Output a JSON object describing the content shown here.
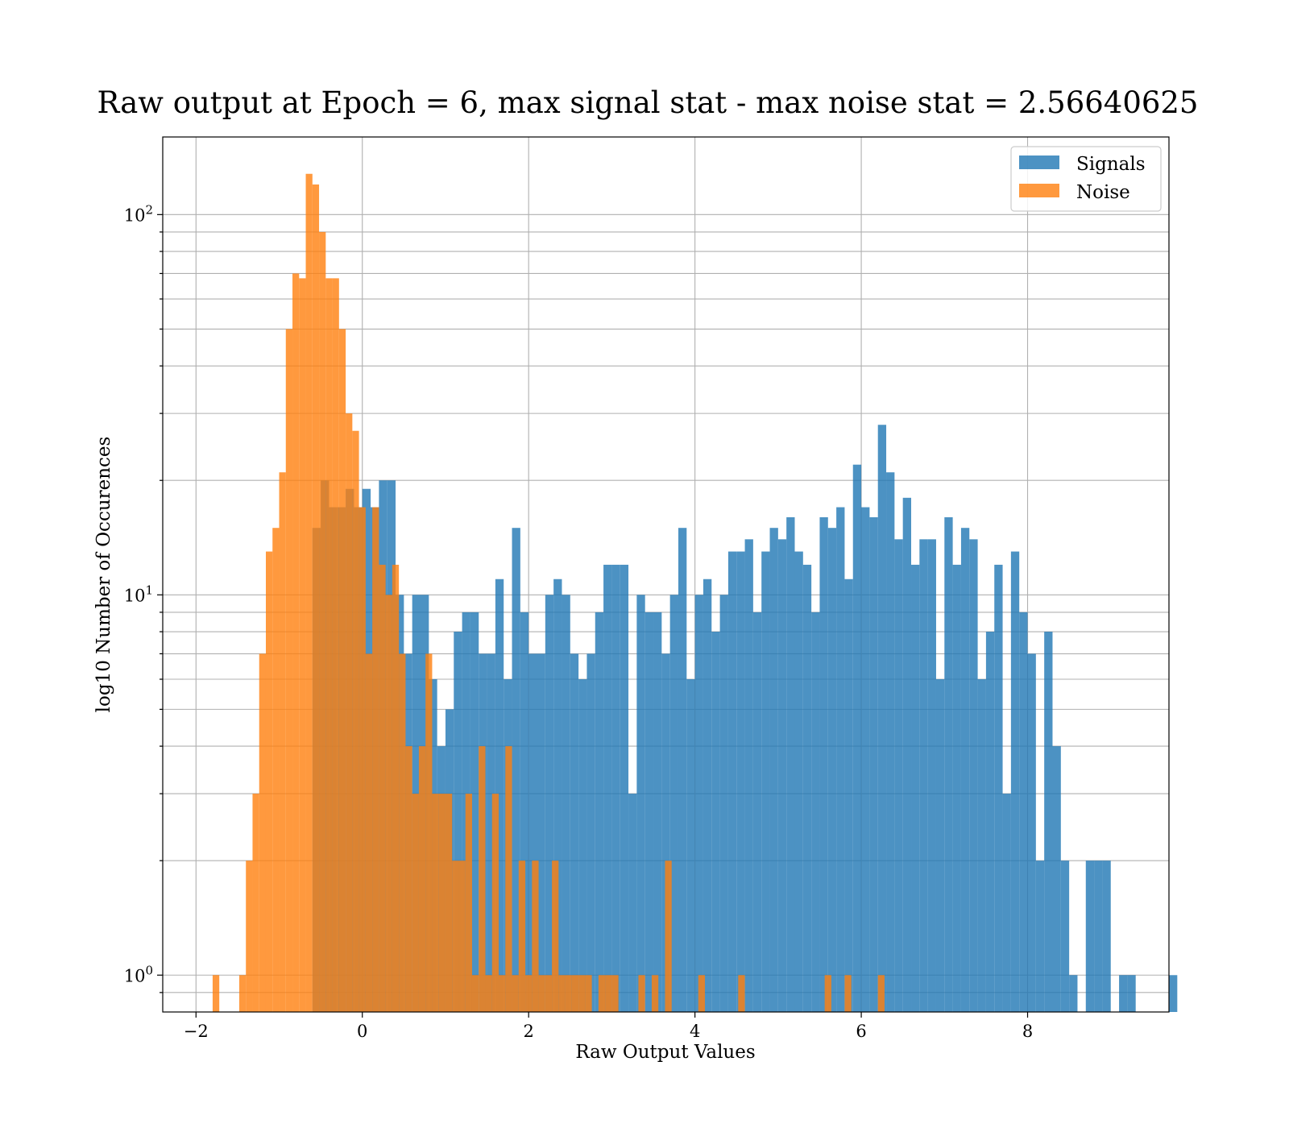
{
  "chart_data": {
    "type": "bar",
    "title": "Raw output at Epoch = 6, max signal stat - max noise stat = 2.56640625",
    "xlabel": "Raw Output Values",
    "ylabel": "log10 Number of Occurences",
    "xlim": [
      -2.4,
      9.7
    ],
    "ylim": [
      0.8,
      160
    ],
    "yscale": "log",
    "grid": true,
    "x_tick_labels": [
      "−2",
      "0",
      "2",
      "4",
      "6",
      "8"
    ],
    "x_ticks": [
      -2,
      0,
      2,
      4,
      6,
      8
    ],
    "y_ticks": [
      1,
      10,
      100
    ],
    "legend_position": "top-right",
    "series": [
      {
        "name": "Signals",
        "color": "#1f77b4",
        "alpha": 0.8,
        "bin_start": -0.6,
        "bin_width": 0.1,
        "values": [
          15,
          20,
          17,
          17,
          19,
          17,
          19,
          17,
          20,
          20,
          10,
          7,
          10,
          10,
          6,
          4,
          5,
          8,
          9,
          9,
          7,
          7,
          11,
          6,
          15,
          9,
          7,
          7,
          10,
          11,
          10,
          7,
          6,
          7,
          9,
          12,
          12,
          12,
          3,
          10,
          9,
          9,
          7,
          10,
          15,
          6,
          10,
          11,
          8,
          10,
          13,
          13,
          14,
          9,
          13,
          15,
          14,
          16,
          13,
          12,
          9,
          16,
          15,
          17,
          11,
          22,
          17,
          16,
          28,
          21,
          14,
          18,
          12,
          14,
          14,
          6,
          16,
          12,
          15,
          14,
          6,
          8,
          12,
          3,
          13,
          9,
          7,
          2,
          8,
          4,
          2,
          1,
          0,
          2,
          2,
          2,
          0,
          1,
          1,
          0,
          0,
          0,
          0,
          1
        ]
      },
      {
        "name": "Noise",
        "color": "#ff7f0e",
        "alpha": 0.8,
        "bin_start": -1.8,
        "bin_width": 0.08,
        "values": [
          1,
          0,
          0,
          0,
          1,
          2,
          3,
          7,
          13,
          15,
          21,
          50,
          70,
          68,
          128,
          120,
          90,
          68,
          68,
          50,
          30,
          27,
          17,
          7,
          17,
          12,
          10,
          12,
          7,
          4,
          3,
          4,
          7,
          3,
          3,
          3,
          2,
          2,
          3,
          1,
          4,
          1,
          3,
          1,
          4,
          1,
          2,
          1,
          2,
          1,
          1,
          2,
          1,
          1,
          1,
          1,
          1,
          0,
          1,
          1,
          1,
          0,
          0,
          0,
          1,
          0,
          1,
          0,
          2,
          0,
          0,
          0,
          0,
          1,
          0,
          0,
          0,
          0,
          0,
          1,
          0,
          0,
          0,
          0,
          0,
          0,
          0,
          0,
          0,
          0,
          0,
          0,
          1,
          0,
          0,
          1,
          0,
          0,
          0,
          0,
          1
        ]
      }
    ]
  }
}
